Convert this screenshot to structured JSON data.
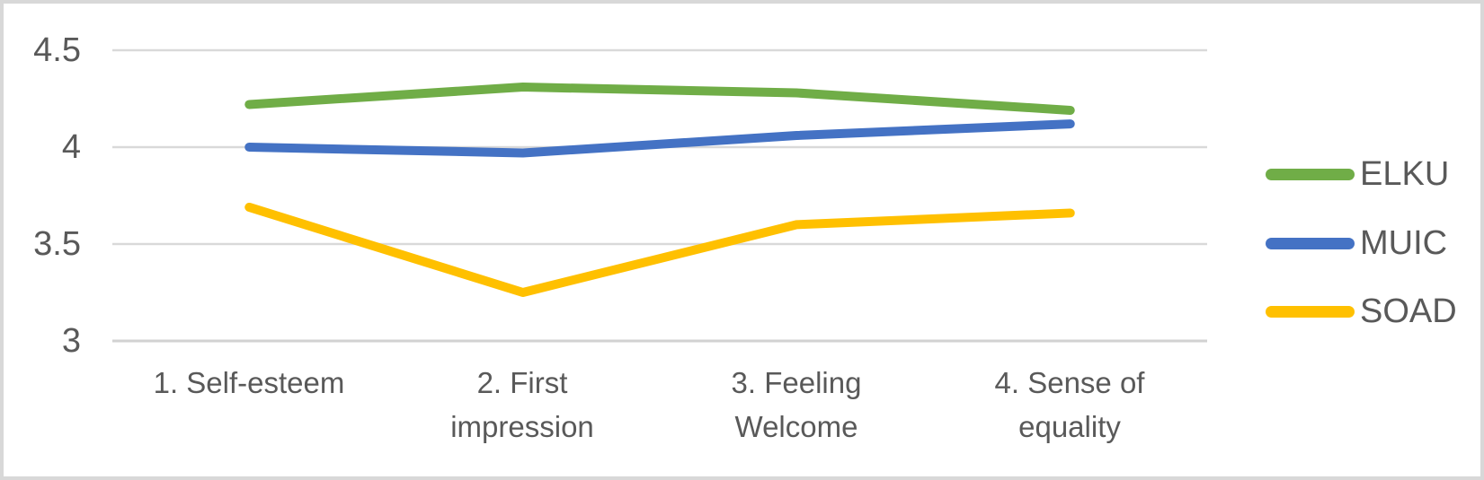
{
  "chart_data": {
    "type": "line",
    "title": "",
    "xlabel": "",
    "ylabel": "",
    "categories": [
      "1. Self-esteem",
      "2. First impression",
      "3. Feeling Welcome",
      "4. Sense of equality"
    ],
    "series": [
      {
        "name": "ELKU",
        "color": "#70AD47",
        "values": [
          4.22,
          4.31,
          4.28,
          4.19
        ]
      },
      {
        "name": "MUIC",
        "color": "#4472C4",
        "values": [
          4.0,
          3.97,
          4.06,
          4.12
        ]
      },
      {
        "name": "SOAD",
        "color": "#FFC000",
        "values": [
          3.69,
          3.25,
          3.6,
          3.66
        ]
      }
    ],
    "ylim": [
      3,
      4.5
    ],
    "yticks": [
      4.5,
      4,
      3.5,
      3
    ],
    "ytick_labels": [
      "4.5",
      "4",
      "3.5",
      "3"
    ],
    "grid": true,
    "legend_position": "right"
  },
  "display": {
    "category_labels": [
      "1. Self-esteem",
      "2. First\nimpression",
      "3. Feeling\nWelcome",
      "4. Sense of\nequality"
    ]
  },
  "colors": {
    "gridline": "#D9D9D9",
    "axis_line": "#D2D2D2",
    "axis_text": "#595959",
    "border": "#D8D8D8",
    "background": "#FFFFFF"
  }
}
